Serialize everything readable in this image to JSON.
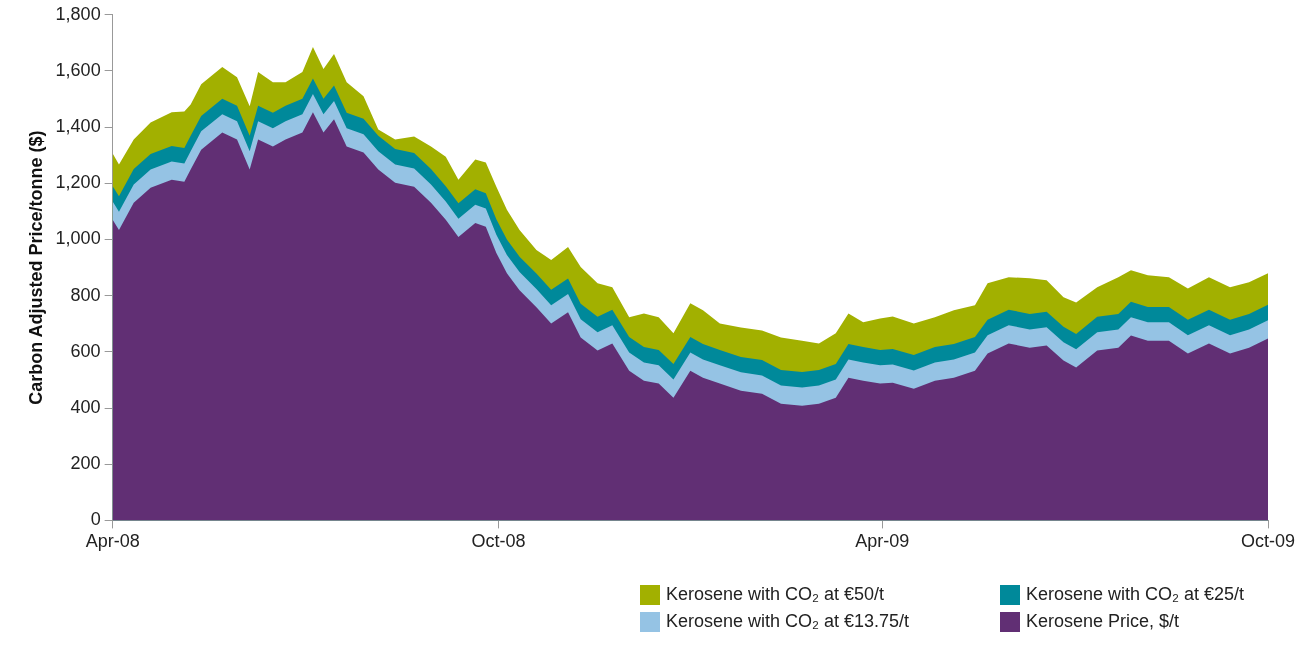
{
  "chart_data": {
    "type": "area",
    "ylabel": "Carbon Adjusted Price/tonne ($)",
    "x": [
      "2008-04-01",
      "2008-04-04",
      "2008-04-11",
      "2008-04-19",
      "2008-04-29",
      "2008-05-05",
      "2008-05-08",
      "2008-05-13",
      "2008-05-23",
      "2008-05-30",
      "2008-06-05",
      "2008-06-09",
      "2008-06-16",
      "2008-06-22",
      "2008-06-30",
      "2008-07-05",
      "2008-07-10",
      "2008-07-15",
      "2008-07-21",
      "2008-07-29",
      "2008-08-05",
      "2008-08-13",
      "2008-08-22",
      "2008-08-30",
      "2008-09-06",
      "2008-09-12",
      "2008-09-20",
      "2008-09-25",
      "2008-09-30",
      "2008-10-05",
      "2008-10-11",
      "2008-10-19",
      "2008-10-26",
      "2008-11-03",
      "2008-11-09",
      "2008-11-17",
      "2008-11-24",
      "2008-12-02",
      "2008-12-09",
      "2008-12-16",
      "2008-12-23",
      "2008-12-31",
      "2009-01-06",
      "2009-01-14",
      "2009-01-24",
      "2009-02-03",
      "2009-02-12",
      "2009-02-22",
      "2009-03-02",
      "2009-03-10",
      "2009-03-16",
      "2009-03-23",
      "2009-03-31",
      "2009-04-06",
      "2009-04-16",
      "2009-04-26",
      "2009-05-05",
      "2009-05-15",
      "2009-05-21",
      "2009-05-31",
      "2009-06-10",
      "2009-06-18",
      "2009-06-26",
      "2009-07-02",
      "2009-07-12",
      "2009-07-22",
      "2009-07-28",
      "2009-08-05",
      "2009-08-15",
      "2009-08-24",
      "2009-09-03",
      "2009-09-13",
      "2009-09-22",
      "2009-10-01"
    ],
    "series": [
      {
        "name": "Kerosene with CO₂ at €50/t",
        "color": "#a2b000",
        "values": [
          1306,
          1267,
          1356,
          1417,
          1453,
          1456,
          1481,
          1553,
          1614,
          1578,
          1474,
          1596,
          1560,
          1560,
          1596,
          1685,
          1607,
          1660,
          1560,
          1510,
          1392,
          1356,
          1367,
          1331,
          1295,
          1213,
          1285,
          1274,
          1188,
          1106,
          1034,
          963,
          927,
          973,
          902,
          844,
          830,
          723,
          737,
          723,
          666,
          773,
          748,
          701,
          687,
          676,
          651,
          640,
          630,
          666,
          737,
          705,
          719,
          726,
          701,
          723,
          748,
          766,
          844,
          866,
          862,
          855,
          794,
          776,
          830,
          866,
          891,
          873,
          866,
          826,
          866,
          830,
          848,
          880
        ]
      },
      {
        "name": "Kerosene with CO₂ at €25/t",
        "color": "#00899a",
        "values": [
          1190,
          1154,
          1251,
          1304,
          1333,
          1326,
          1369,
          1440,
          1501,
          1476,
          1369,
          1476,
          1451,
          1476,
          1501,
          1573,
          1501,
          1548,
          1451,
          1430,
          1369,
          1322,
          1308,
          1251,
          1190,
          1129,
          1179,
          1165,
          1072,
          1000,
          939,
          879,
          821,
          861,
          771,
          725,
          750,
          653,
          617,
          607,
          557,
          653,
          628,
          607,
          582,
          571,
          535,
          528,
          535,
          557,
          628,
          617,
          607,
          610,
          589,
          617,
          628,
          653,
          714,
          750,
          735,
          743,
          689,
          664,
          725,
          735,
          778,
          760,
          760,
          714,
          750,
          714,
          735,
          768
        ]
      },
      {
        "name": "Kerosene with CO₂ at €13.75/t",
        "color": "#95c3e4",
        "values": [
          1135,
          1099,
          1196,
          1249,
          1278,
          1271,
          1314,
          1385,
          1446,
          1421,
          1314,
          1421,
          1396,
          1421,
          1446,
          1518,
          1446,
          1493,
          1396,
          1375,
          1314,
          1267,
          1253,
          1196,
          1135,
          1074,
          1124,
          1110,
          1017,
          945,
          884,
          824,
          766,
          806,
          716,
          670,
          695,
          598,
          562,
          552,
          502,
          598,
          573,
          552,
          527,
          516,
          480,
          473,
          480,
          502,
          573,
          562,
          552,
          555,
          534,
          562,
          573,
          598,
          659,
          695,
          680,
          688,
          634,
          609,
          670,
          680,
          723,
          705,
          705,
          659,
          695,
          659,
          680,
          713
        ]
      },
      {
        "name": "Kerosene Price, $/t",
        "color": "#612f74",
        "values": [
          1070,
          1034,
          1131,
          1184,
          1213,
          1206,
          1249,
          1320,
          1381,
          1356,
          1249,
          1356,
          1331,
          1356,
          1381,
          1453,
          1381,
          1428,
          1331,
          1310,
          1249,
          1202,
          1188,
          1131,
          1070,
          1009,
          1059,
          1045,
          952,
          880,
          819,
          759,
          701,
          741,
          651,
          605,
          630,
          533,
          497,
          487,
          437,
          533,
          508,
          487,
          462,
          451,
          415,
          408,
          415,
          437,
          508,
          497,
          487,
          490,
          469,
          497,
          508,
          533,
          594,
          630,
          615,
          623,
          569,
          544,
          605,
          615,
          658,
          640,
          640,
          594,
          630,
          594,
          615,
          648
        ]
      }
    ],
    "xlim": [
      "2008-04-01",
      "2009-10-01"
    ],
    "xticks": [
      {
        "value": "2008-04-01",
        "label": "Apr-08"
      },
      {
        "value": "2008-10-01",
        "label": "Oct-08"
      },
      {
        "value": "2009-04-01",
        "label": "Apr-09"
      },
      {
        "value": "2009-10-01",
        "label": "Oct-09"
      }
    ],
    "ylim": [
      0,
      1800
    ],
    "yticks": [
      0,
      200,
      400,
      600,
      800,
      {
        "value": 1000,
        "label": "1,000"
      },
      {
        "value": 1200,
        "label": "1,200"
      },
      {
        "value": 1400,
        "label": "1,400"
      },
      {
        "value": 1600,
        "label": "1,600"
      },
      {
        "value": 1800,
        "label": "1,800"
      }
    ],
    "grid": false,
    "legend": "bottom right"
  }
}
